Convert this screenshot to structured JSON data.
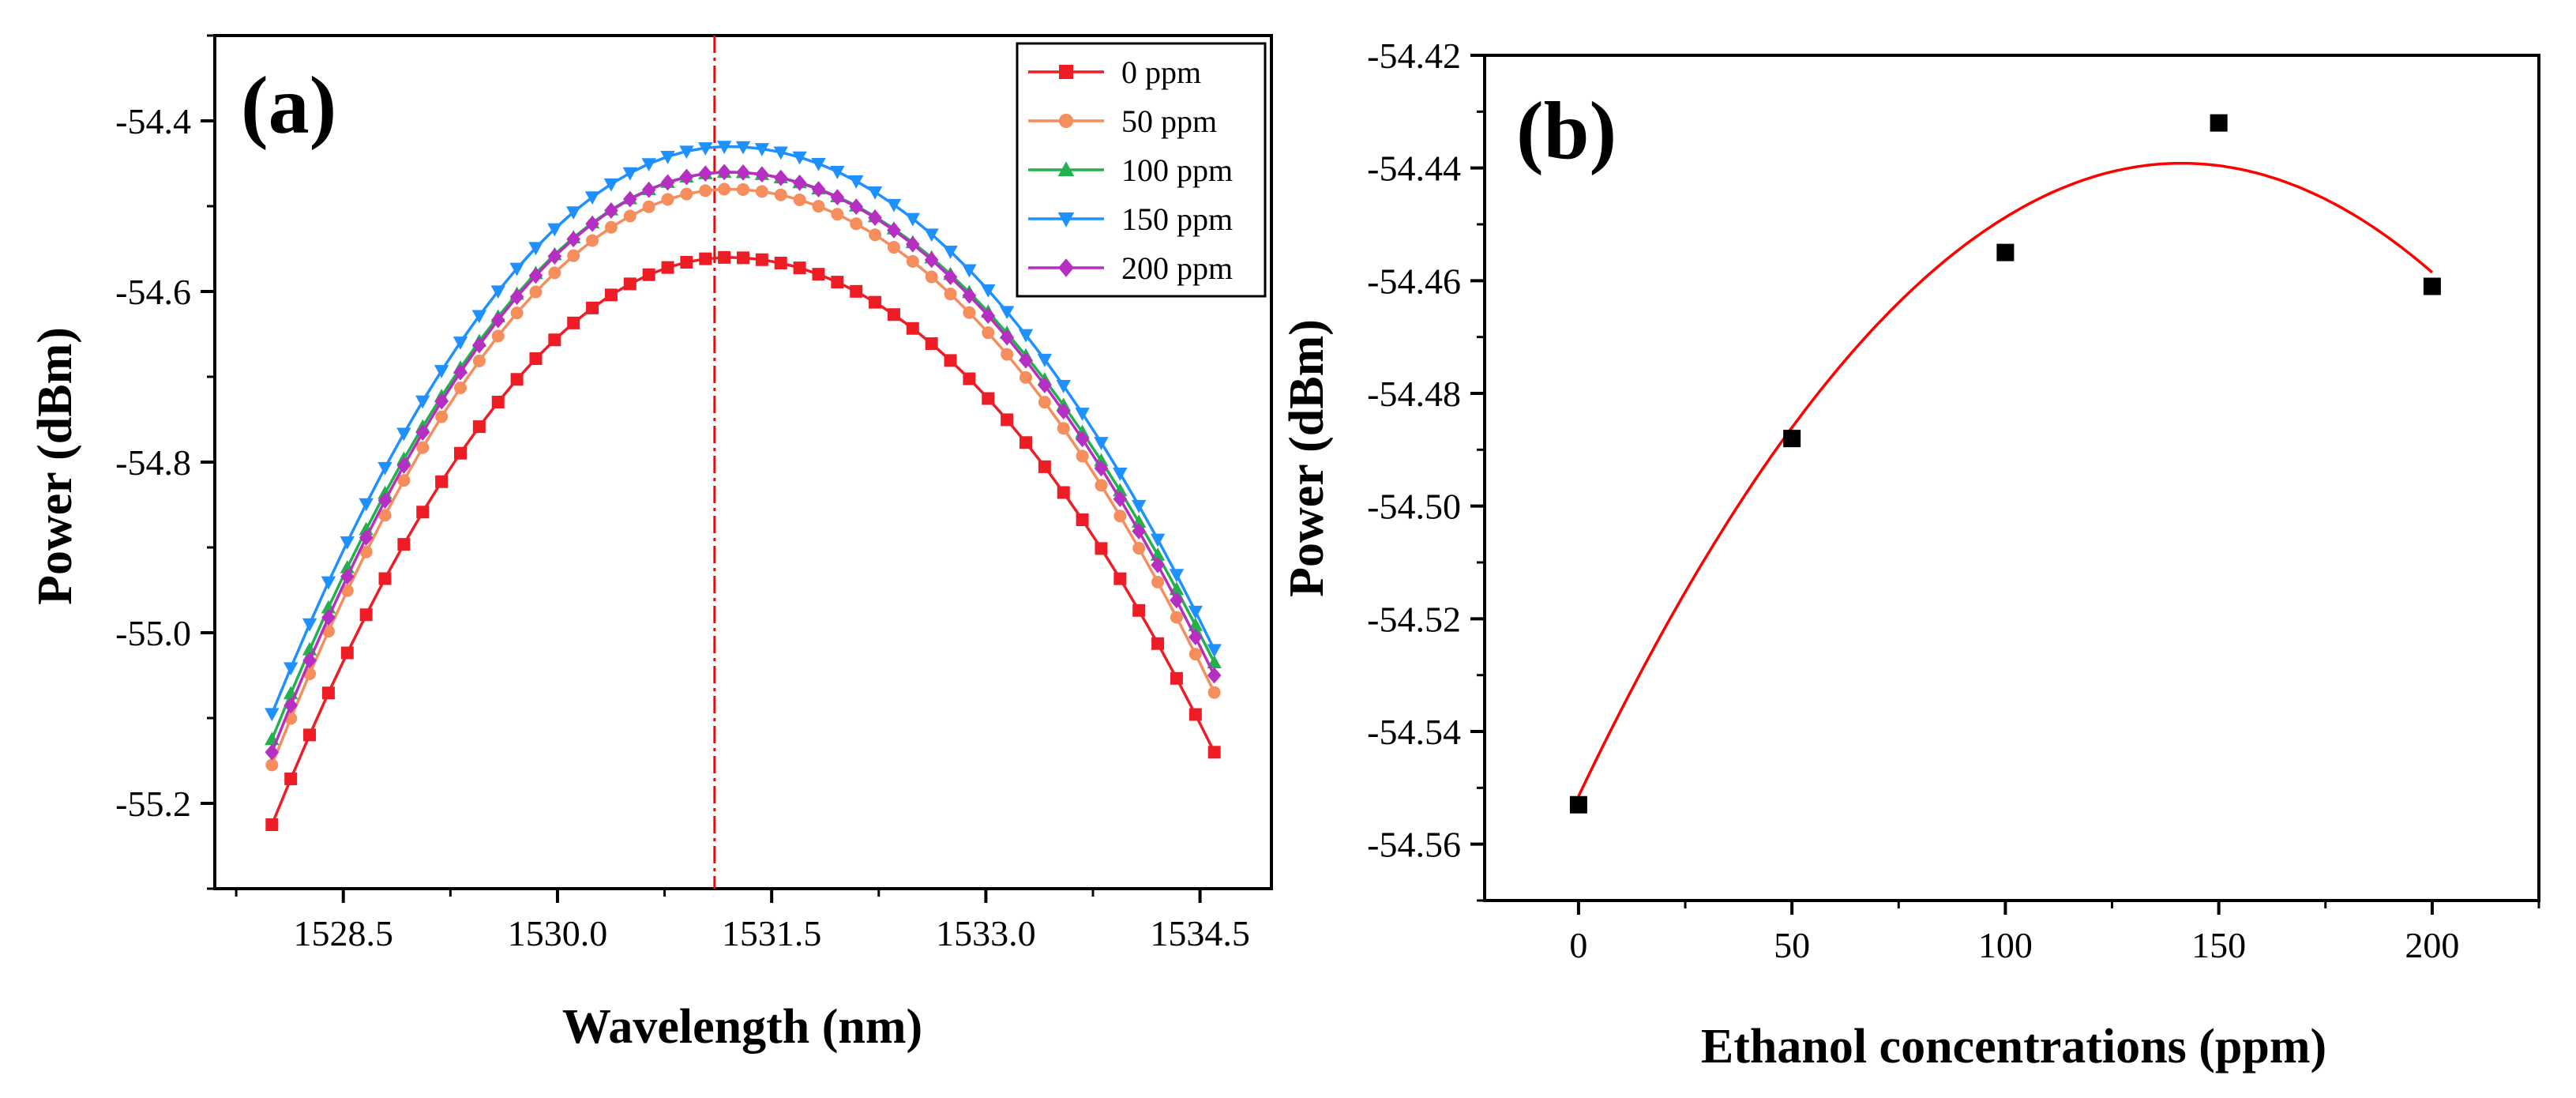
{
  "chart_data": [
    {
      "panel_label": "(a)",
      "type": "line",
      "xlabel": "Wavelength (nm)",
      "ylabel": "Power (dBm)",
      "xlim": [
        1527.6,
        1535.0
      ],
      "ylim": [
        -55.3,
        -54.3
      ],
      "xticks": [
        1528.5,
        1530.0,
        1531.5,
        1533.0,
        1534.5
      ],
      "xtick_labels": [
        "1528.5",
        "1530.0",
        "1531.5",
        "1533.0",
        "1534.5"
      ],
      "yticks": [
        -55.2,
        -55.0,
        -54.8,
        -54.6,
        -54.4
      ],
      "ytick_labels": [
        "-55.2",
        "-55.0",
        "-54.8",
        "-54.6",
        "-54.4"
      ],
      "vertical_reference_line_x": 1531.1,
      "x_start": 1528.0,
      "x_end": 1534.6,
      "points_per_series": 51,
      "legend_position": "top-right",
      "series": [
        {
          "name": "0 ppm",
          "color": "#ee1c25",
          "marker": "square",
          "peak_x": 1531.2,
          "peak_y": -54.56,
          "start_y": -55.225,
          "end_y": -55.14
        },
        {
          "name": "50 ppm",
          "color": "#f58d5c",
          "marker": "circle",
          "peak_x": 1531.2,
          "peak_y": -54.48,
          "start_y": -55.155,
          "end_y": -55.07
        },
        {
          "name": "100 ppm",
          "color": "#22b14c",
          "marker": "triangle-up",
          "peak_x": 1531.2,
          "peak_y": -54.46,
          "start_y": -55.125,
          "end_y": -55.035
        },
        {
          "name": "150 ppm",
          "color": "#1e90ff",
          "marker": "triangle-down",
          "peak_x": 1531.2,
          "peak_y": -54.43,
          "start_y": -55.095,
          "end_y": -55.02
        },
        {
          "name": "200 ppm",
          "color": "#b72ec2",
          "marker": "diamond",
          "peak_x": 1531.2,
          "peak_y": -54.46,
          "start_y": -55.14,
          "end_y": -55.05
        }
      ]
    },
    {
      "panel_label": "(b)",
      "type": "scatter",
      "xlabel": "Ethanol concentrations (ppm)",
      "ylabel": "Power (dBm)",
      "xlim": [
        -22,
        225
      ],
      "ylim": [
        -54.57,
        -54.42
      ],
      "xticks": [
        0,
        50,
        100,
        150,
        200
      ],
      "xtick_labels": [
        "0",
        "50",
        "100",
        "150",
        "200"
      ],
      "yticks": [
        -54.56,
        -54.54,
        -54.52,
        -54.5,
        -54.48,
        -54.46,
        -54.44,
        -54.42
      ],
      "ytick_labels": [
        "-54.56",
        "-54.54",
        "-54.52",
        "-54.50",
        "-54.48",
        "-54.46",
        "-54.44",
        "-54.42"
      ],
      "points": {
        "x": [
          0,
          50,
          100,
          150,
          200
        ],
        "y": [
          -54.553,
          -54.488,
          -54.455,
          -54.432,
          -54.461
        ]
      },
      "marker_color": "#000000",
      "fit": {
        "type": "quadratic",
        "color": "#ff0000",
        "a": -5.626e-06,
        "b": 0.00159,
        "c": -54.5515,
        "x_range": [
          0,
          200
        ]
      }
    }
  ]
}
